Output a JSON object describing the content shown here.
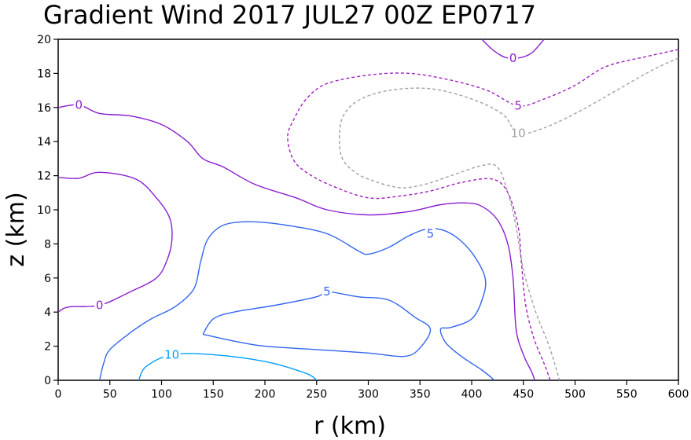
{
  "title": "Gradient Wind 2017 JUL27 00Z   EP0717",
  "chart_data": {
    "type": "contour",
    "title": "Gradient Wind 2017 JUL27 00Z   EP0717",
    "xlabel": "r (km)",
    "ylabel": "z (km)",
    "xlim": [
      0,
      600
    ],
    "ylim": [
      0,
      20
    ],
    "xticks": [
      "0",
      "50",
      "100",
      "150",
      "200",
      "250",
      "300",
      "350",
      "400",
      "450",
      "500",
      "550",
      "600"
    ],
    "yticks": [
      "0",
      "2",
      "4",
      "6",
      "8",
      "10",
      "12",
      "14",
      "16",
      "18",
      "20"
    ],
    "grid": false,
    "contours": [
      {
        "level": 0,
        "label": "0",
        "color": "#8a1ecf",
        "dashed": false,
        "label_at": [
          440,
          18.9
        ],
        "points": [
          [
            410,
            20
          ],
          [
            420,
            19.4
          ],
          [
            432,
            18.95
          ],
          [
            445,
            18.9
          ],
          [
            458,
            19.2
          ],
          [
            470,
            20
          ]
        ]
      },
      {
        "level": 0,
        "label": "0",
        "color": "#8a1ecf",
        "dashed": false,
        "label_at": [
          20,
          16.15
        ],
        "points": [
          [
            0,
            16.0
          ],
          [
            20,
            16.15
          ],
          [
            40,
            15.65
          ],
          [
            70,
            15.5
          ],
          [
            100,
            15.0
          ],
          [
            125,
            14.0
          ],
          [
            140,
            13.0
          ],
          [
            160,
            12.5
          ],
          [
            190,
            11.5
          ],
          [
            230,
            10.7
          ],
          [
            260,
            10.0
          ],
          [
            300,
            9.7
          ],
          [
            340,
            9.9
          ],
          [
            370,
            10.3
          ],
          [
            395,
            10.4
          ],
          [
            410,
            10.2
          ],
          [
            425,
            9.4
          ],
          [
            435,
            8.0
          ],
          [
            440,
            6.0
          ],
          [
            443,
            3.0
          ],
          [
            450,
            1.5
          ],
          [
            458,
            0.5
          ],
          [
            461,
            0
          ]
        ]
      },
      {
        "level": 0,
        "label": "0",
        "color": "#8a1ecf",
        "dashed": false,
        "label_at": [
          40,
          4.4
        ],
        "points": [
          [
            0,
            4.0
          ],
          [
            10,
            4.3
          ],
          [
            40,
            4.4
          ],
          [
            70,
            5.2
          ],
          [
            95,
            6.0
          ],
          [
            105,
            7.0
          ],
          [
            110,
            8.2
          ],
          [
            108,
            9.5
          ],
          [
            95,
            10.7
          ],
          [
            75,
            11.8
          ],
          [
            40,
            12.2
          ],
          [
            20,
            11.85
          ],
          [
            0,
            11.9
          ]
        ]
      },
      {
        "level": -5,
        "label": "5",
        "color": "#a020c0",
        "dashed": true,
        "label_at": [
          445,
          16.1
        ],
        "points": [
          [
            600,
            19.4
          ],
          [
            570,
            19.0
          ],
          [
            530,
            18.4
          ],
          [
            500,
            17.3
          ],
          [
            470,
            16.5
          ],
          [
            445,
            16.1
          ],
          [
            415,
            17.0
          ],
          [
            380,
            17.6
          ],
          [
            340,
            18.0
          ],
          [
            300,
            17.9
          ],
          [
            260,
            17.4
          ],
          [
            240,
            16.5
          ],
          [
            228,
            15.3
          ],
          [
            222,
            14.3
          ],
          [
            227,
            13.0
          ],
          [
            240,
            12.2
          ],
          [
            265,
            11.4
          ],
          [
            300,
            10.7
          ],
          [
            330,
            10.8
          ],
          [
            360,
            11.1
          ],
          [
            390,
            11.6
          ],
          [
            420,
            11.8
          ],
          [
            435,
            11.0
          ],
          [
            445,
            9.0
          ],
          [
            448,
            7.0
          ],
          [
            452,
            4.5
          ],
          [
            460,
            2.5
          ],
          [
            470,
            1.0
          ],
          [
            476,
            0
          ]
        ]
      },
      {
        "level": -10,
        "label": "10",
        "color": "#a0a0a0",
        "dashed": true,
        "label_at": [
          445,
          14.5
        ],
        "points": [
          [
            600,
            18.9
          ],
          [
            575,
            18.2
          ],
          [
            540,
            17.0
          ],
          [
            505,
            15.8
          ],
          [
            470,
            14.8
          ],
          [
            445,
            14.5
          ],
          [
            430,
            15.6
          ],
          [
            400,
            16.5
          ],
          [
            360,
            17.1
          ],
          [
            320,
            17.0
          ],
          [
            290,
            16.4
          ],
          [
            275,
            15.4
          ],
          [
            272,
            14.0
          ],
          [
            275,
            13.0
          ],
          [
            285,
            12.3
          ],
          [
            300,
            11.8
          ],
          [
            330,
            11.3
          ],
          [
            355,
            11.5
          ],
          [
            380,
            12.0
          ],
          [
            410,
            12.6
          ],
          [
            425,
            12.5
          ],
          [
            435,
            11.0
          ],
          [
            443,
            9.0
          ],
          [
            450,
            6.5
          ],
          [
            462,
            4.0
          ],
          [
            475,
            2.0
          ],
          [
            485,
            0
          ]
        ]
      },
      {
        "level": 5,
        "label": "5",
        "color": "#3366ee",
        "dashed": false,
        "label_at": [
          360,
          8.6
        ],
        "points": [
          [
            40,
            0
          ],
          [
            44,
            1.0
          ],
          [
            50,
            1.8
          ],
          [
            70,
            2.8
          ],
          [
            90,
            3.6
          ],
          [
            110,
            4.2
          ],
          [
            125,
            4.9
          ],
          [
            133,
            5.6
          ],
          [
            138,
            7.0
          ],
          [
            145,
            8.3
          ],
          [
            160,
            9.1
          ],
          [
            185,
            9.3
          ],
          [
            220,
            9.1
          ],
          [
            260,
            8.6
          ],
          [
            290,
            7.6
          ],
          [
            300,
            7.4
          ],
          [
            320,
            7.8
          ],
          [
            340,
            8.5
          ],
          [
            360,
            8.9
          ],
          [
            380,
            8.6
          ],
          [
            400,
            7.5
          ],
          [
            413,
            6.0
          ],
          [
            410,
            4.7
          ],
          [
            400,
            3.6
          ],
          [
            380,
            3.1
          ],
          [
            370,
            3.0
          ],
          [
            375,
            2.2
          ],
          [
            390,
            1.4
          ],
          [
            410,
            0.6
          ],
          [
            422,
            0
          ]
        ]
      },
      {
        "level": 5,
        "label": "5",
        "color": "#3366ee",
        "dashed": false,
        "label_at": [
          260,
          5.2
        ],
        "points": [
          [
            140,
            2.7
          ],
          [
            150,
            3.6
          ],
          [
            170,
            4.0
          ],
          [
            210,
            4.4
          ],
          [
            250,
            4.9
          ],
          [
            260,
            5.2
          ],
          [
            290,
            4.9
          ],
          [
            320,
            4.7
          ],
          [
            345,
            3.7
          ],
          [
            360,
            3.0
          ],
          [
            350,
            1.9
          ],
          [
            335,
            1.4
          ],
          [
            300,
            1.6
          ],
          [
            250,
            1.8
          ],
          [
            200,
            2.0
          ],
          [
            170,
            2.3
          ],
          [
            140,
            2.7
          ]
        ]
      },
      {
        "level": 10,
        "label": "10",
        "color": "#00a0ff",
        "dashed": false,
        "label_at": [
          110,
          1.5
        ],
        "points": [
          [
            78,
            0
          ],
          [
            85,
            0.8
          ],
          [
            110,
            1.5
          ],
          [
            150,
            1.5
          ],
          [
            200,
            1.1
          ],
          [
            240,
            0.4
          ],
          [
            250,
            0
          ]
        ]
      }
    ]
  }
}
